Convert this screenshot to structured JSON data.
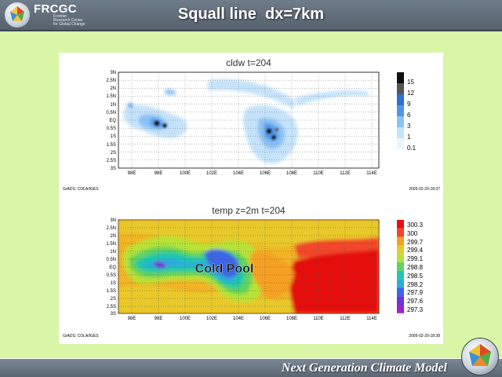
{
  "header": {
    "logo_name": "FRCGC",
    "logo_subtitle_1": "Frontier",
    "logo_subtitle_2": "Research Center",
    "logo_subtitle_3": "for Global Change",
    "title": "Squall line  dx=7km"
  },
  "top_plot": {
    "title": "cldw  t=204",
    "y_ticks": [
      "3N",
      "2.5N",
      "2N",
      "1.5N",
      "1N",
      "0.5N",
      "EQ",
      "0.5S",
      "1S",
      "1.5S",
      "2S",
      "2.5S",
      "3S"
    ],
    "x_ticks": [
      "98E",
      "98E",
      "100E",
      "102E",
      "104E",
      "106E",
      "108E",
      "110E",
      "112E",
      "114E"
    ],
    "legend_labels": [
      "15",
      "12",
      "9",
      "6",
      "3",
      "1",
      "0.1"
    ],
    "legend_colors": [
      "#111111",
      "#555555",
      "#2d6fd2",
      "#4f95ea",
      "#8cc2f5",
      "#c4e2fa",
      "#eaf6fe"
    ],
    "footer_left": "GrADS: COLA/IGES",
    "footer_right": "2005-02-20-18:37"
  },
  "bottom_plot": {
    "title": "temp  z=2m  t=204",
    "y_ticks": [
      "3N",
      "2.5N",
      "2N",
      "1.5N",
      "1N",
      "0.5N",
      "EQ",
      "0.5S",
      "1S",
      "1.5S",
      "2S",
      "2.5S",
      "3S"
    ],
    "x_ticks": [
      "98E",
      "98E",
      "100E",
      "102E",
      "104E",
      "106E",
      "108E",
      "110E",
      "112E",
      "114E"
    ],
    "legend_labels": [
      "300.3",
      "300",
      "299.7",
      "299.4",
      "299.1",
      "298.8",
      "298.5",
      "298.2",
      "297.9",
      "297.6",
      "297.3"
    ],
    "legend_colors": [
      "#e60f0f",
      "#f2462a",
      "#f5a021",
      "#e8c929",
      "#b8e235",
      "#5fd35e",
      "#1fc7b0",
      "#2faadf",
      "#3c66e6",
      "#6a35d8",
      "#a121c8"
    ],
    "annotation": "Cold Pool",
    "footer_left": "GrADS: COLA/IGES",
    "footer_right": "2005-02-20-18:38"
  },
  "footer": {
    "slogan": "Next Generation Climate Model"
  }
}
